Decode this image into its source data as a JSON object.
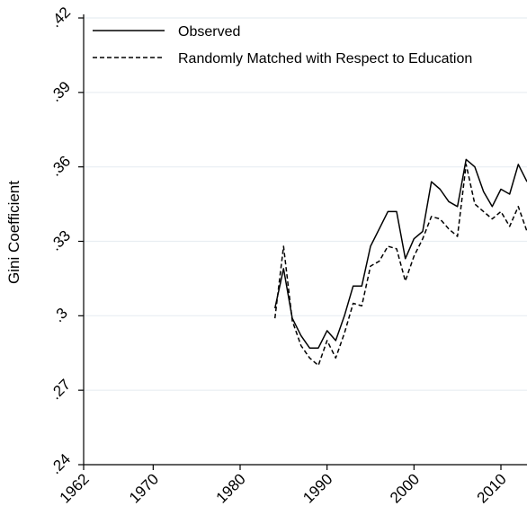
{
  "chart_data": {
    "type": "line",
    "title": "",
    "xlabel": "",
    "ylabel": "Gini Coefficient",
    "xlim": [
      1962,
      2013
    ],
    "ylim": [
      0.24,
      0.42
    ],
    "x_ticks": [
      1962,
      1970,
      1980,
      1990,
      2000,
      2010
    ],
    "x_tick_labels": [
      "1962",
      "1970",
      "1980",
      "1990",
      "2000",
      "2010"
    ],
    "y_ticks": [
      0.24,
      0.27,
      0.3,
      0.33,
      0.36,
      0.39,
      0.42
    ],
    "y_tick_labels": [
      ".24",
      ".27",
      ".3",
      ".33",
      ".36",
      ".39",
      ".42"
    ],
    "grid": "horizontal",
    "legend_position": "top-left",
    "x": [
      1984,
      1985,
      1986,
      1987,
      1988,
      1989,
      1990,
      1991,
      1992,
      1993,
      1994,
      1995,
      1996,
      1997,
      1998,
      1999,
      2000,
      2001,
      2002,
      2003,
      2004,
      2005,
      2006,
      2007,
      2008,
      2009,
      2010,
      2011,
      2012,
      2013
    ],
    "series": [
      {
        "name": "Observed",
        "style": "solid",
        "color": "#000000",
        "values": [
          0.303,
          0.319,
          0.299,
          0.292,
          0.287,
          0.287,
          0.294,
          0.29,
          0.3,
          0.312,
          0.312,
          0.328,
          0.335,
          0.342,
          0.342,
          0.323,
          0.331,
          0.334,
          0.354,
          0.351,
          0.346,
          0.344,
          0.363,
          0.36,
          0.35,
          0.344,
          0.351,
          0.349,
          0.361,
          0.354
        ]
      },
      {
        "name": "Randomly Matched with Respect to Education",
        "style": "dashed",
        "color": "#000000",
        "values": [
          0.299,
          0.328,
          0.298,
          0.288,
          0.283,
          0.28,
          0.29,
          0.283,
          0.293,
          0.305,
          0.304,
          0.32,
          0.322,
          0.328,
          0.327,
          0.314,
          0.324,
          0.331,
          0.34,
          0.339,
          0.335,
          0.332,
          0.361,
          0.345,
          0.342,
          0.339,
          0.342,
          0.336,
          0.344,
          0.334
        ]
      }
    ]
  }
}
